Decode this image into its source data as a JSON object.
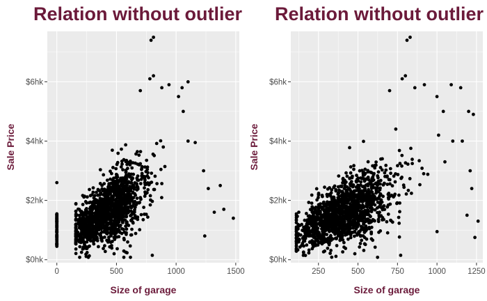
{
  "chart_data": [
    {
      "type": "scatter",
      "title": "Relation without outlier",
      "xlabel": "Size of garage",
      "ylabel": "Sale Price",
      "xlim": [
        -80,
        1530
      ],
      "ylim": [
        -10,
        770
      ],
      "xticks": [
        0,
        500,
        1000,
        1500
      ],
      "xtick_labels": [
        "0",
        "500",
        "1000",
        "1500"
      ],
      "yticks": [
        0,
        200,
        400,
        600
      ],
      "ytick_labels": [
        "$0hk",
        "$2hk",
        "$4hk",
        "$6hk"
      ],
      "grid": true,
      "legend": "none",
      "color": "#000000",
      "notable_points": [
        [
          0,
          260
        ],
        [
          0,
          140
        ],
        [
          0,
          110
        ],
        [
          0,
          80
        ],
        [
          0,
          50
        ],
        [
          810,
          750
        ],
        [
          790,
          740
        ],
        [
          780,
          610
        ],
        [
          810,
          620
        ],
        [
          700,
          570
        ],
        [
          880,
          580
        ],
        [
          940,
          590
        ],
        [
          1020,
          550
        ],
        [
          1060,
          500
        ],
        [
          1100,
          400
        ],
        [
          1160,
          395
        ],
        [
          1230,
          300
        ],
        [
          1270,
          240
        ],
        [
          1320,
          160
        ],
        [
          1370,
          250
        ],
        [
          1400,
          170
        ],
        [
          1480,
          140
        ],
        [
          1240,
          80
        ],
        [
          800,
          15
        ],
        [
          480,
          20
        ],
        [
          1100,
          600
        ],
        [
          1050,
          580
        ]
      ]
    },
    {
      "type": "scatter",
      "title": "Relation without outlier",
      "xlabel": "Size of garage",
      "ylabel": "Sale Price",
      "xlim": [
        75,
        1290
      ],
      "ylim": [
        -10,
        770
      ],
      "xticks": [
        250,
        500,
        750,
        1000,
        1250
      ],
      "xtick_labels": [
        "250",
        "500",
        "750",
        "1000",
        "1250"
      ],
      "yticks": [
        0,
        200,
        400,
        600
      ],
      "ytick_labels": [
        "$0hk",
        "$2hk",
        "$4hk",
        "$6hk"
      ],
      "grid": true,
      "legend": "none",
      "color": "#000000",
      "notable_points": [
        [
          830,
          750
        ],
        [
          810,
          740
        ],
        [
          780,
          610
        ],
        [
          800,
          620
        ],
        [
          700,
          570
        ],
        [
          860,
          580
        ],
        [
          920,
          590
        ],
        [
          1000,
          550
        ],
        [
          1040,
          500
        ],
        [
          1090,
          590
        ],
        [
          1150,
          580
        ],
        [
          1200,
          500
        ],
        [
          1230,
          490
        ],
        [
          1100,
          400
        ],
        [
          1160,
          400
        ],
        [
          1210,
          300
        ],
        [
          1220,
          240
        ],
        [
          1190,
          150
        ],
        [
          1240,
          75
        ],
        [
          1260,
          130
        ],
        [
          770,
          15
        ],
        [
          480,
          20
        ],
        [
          120,
          80
        ],
        [
          1010,
          420
        ],
        [
          1050,
          330
        ]
      ]
    }
  ]
}
